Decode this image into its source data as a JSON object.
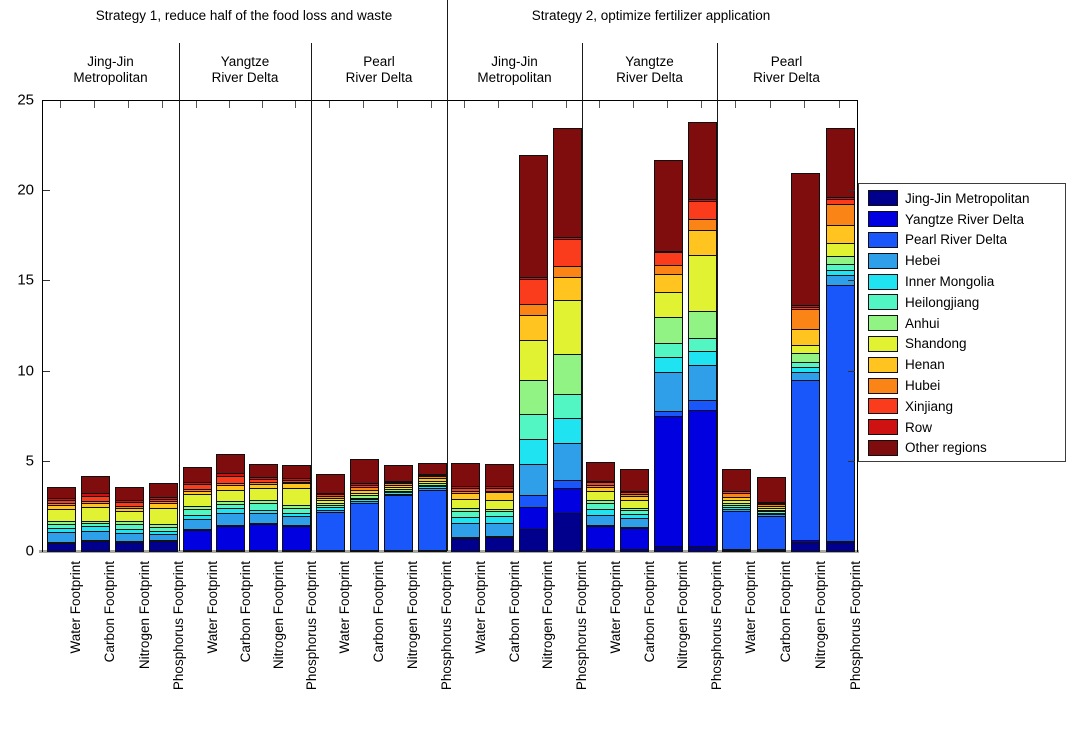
{
  "header": {
    "strategy1_title": "Strategy 1, reduce half of the food loss and waste",
    "strategy2_title": "Strategy 2, optimize fertilizer application"
  },
  "y_axis": {
    "tick_values": [
      0,
      5,
      10,
      15,
      20,
      25
    ],
    "max": 25
  },
  "x_axis": {
    "footprint_labels": [
      "Water Footprint",
      "Carbon Footprint",
      "Nitrogen Footprint",
      "Phosphorus Footprint"
    ]
  },
  "legend": {
    "note": "entries generated from chart_data.series and series_colors"
  },
  "chart_data": {
    "type": "bar",
    "stacked": true,
    "ylim": [
      0,
      25
    ],
    "grid": false,
    "legend_position": "right-outside",
    "series": [
      "Jing-Jin Metropolitan",
      "Yangtze River Delta",
      "Pearl River Delta",
      "Hebei",
      "Inner Mongolia",
      "Heilongjiang",
      "Anhui",
      "Shandong",
      "Henan",
      "Hubei",
      "Xinjiang",
      "Row",
      "Other regions"
    ],
    "series_colors": [
      "#00008C",
      "#0000E0",
      "#1A57FA",
      "#2E9FE8",
      "#1FE3F0",
      "#52F6C2",
      "#90F383",
      "#E1F232",
      "#FFC41F",
      "#FB8417",
      "#FA3C1C",
      "#CE1212",
      "#7F0D0D"
    ],
    "strategies": [
      {
        "title": "Strategy 1, reduce half of the food loss and waste",
        "regions": [
          {
            "name_lines": [
              "Jing-Jin",
              "Metropolitan"
            ],
            "bars": [
              {
                "label": "Water Footprint",
                "values": [
                  0.45,
                  0.03,
                  0.02,
                  0.55,
                  0.2,
                  0.25,
                  0.15,
                  0.7,
                  0.2,
                  0.1,
                  0.2,
                  0.1,
                  0.55
                ]
              },
              {
                "label": "Carbon Footprint",
                "values": [
                  0.55,
                  0.03,
                  0.02,
                  0.5,
                  0.3,
                  0.15,
                  0.1,
                  0.8,
                  0.2,
                  0.1,
                  0.3,
                  0.15,
                  0.9
                ]
              },
              {
                "label": "Nitrogen Footprint",
                "values": [
                  0.5,
                  0.03,
                  0.02,
                  0.45,
                  0.2,
                  0.3,
                  0.15,
                  0.55,
                  0.2,
                  0.1,
                  0.2,
                  0.15,
                  0.65
                ]
              },
              {
                "label": "Phosphorus Footprint",
                "values": [
                  0.55,
                  0.03,
                  0.02,
                  0.35,
                  0.15,
                  0.25,
                  0.15,
                  0.9,
                  0.25,
                  0.1,
                  0.15,
                  0.1,
                  0.7
                ]
              }
            ]
          },
          {
            "name_lines": [
              "Yangtze",
              "River Delta"
            ],
            "bars": [
              {
                "label": "Water Footprint",
                "values": [
                  0.05,
                  1.1,
                  0.05,
                  0.55,
                  0.25,
                  0.35,
                  0.15,
                  0.65,
                  0.2,
                  0.1,
                  0.25,
                  0.1,
                  0.8
                ]
              },
              {
                "label": "Carbon Footprint",
                "values": [
                  0.05,
                  1.35,
                  0.05,
                  0.65,
                  0.3,
                  0.2,
                  0.15,
                  0.65,
                  0.25,
                  0.1,
                  0.4,
                  0.15,
                  1.0
                ]
              },
              {
                "label": "Nitrogen Footprint",
                "values": [
                  0.05,
                  1.45,
                  0.05,
                  0.55,
                  0.2,
                  0.35,
                  0.15,
                  0.7,
                  0.2,
                  0.1,
                  0.2,
                  0.1,
                  0.65
                ]
              },
              {
                "label": "Phosphorus Footprint",
                "values": [
                  0.05,
                  1.35,
                  0.05,
                  0.5,
                  0.15,
                  0.3,
                  0.15,
                  0.95,
                  0.25,
                  0.1,
                  0.1,
                  0.1,
                  0.65
                ]
              }
            ]
          },
          {
            "name_lines": [
              "Pearl",
              "River Delta"
            ],
            "bars": [
              {
                "label": "Water Footprint",
                "values": [
                  0.03,
                  0.05,
                  2.1,
                  0.12,
                  0.15,
                  0.1,
                  0.1,
                  0.15,
                  0.15,
                  0.1,
                  0.1,
                  0.05,
                  1.0
                ]
              },
              {
                "label": "Carbon Footprint",
                "values": [
                  0.03,
                  0.05,
                  2.6,
                  0.1,
                  0.08,
                  0.1,
                  0.12,
                  0.15,
                  0.17,
                  0.15,
                  0.1,
                  0.1,
                  1.3
                ]
              },
              {
                "label": "Nitrogen Footprint",
                "values": [
                  0.03,
                  0.05,
                  3.0,
                  0.1,
                  0.08,
                  0.08,
                  0.1,
                  0.1,
                  0.12,
                  0.1,
                  0.06,
                  0.08,
                  0.8
                ]
              },
              {
                "label": "Phosphorus Footprint",
                "values": [
                  0.03,
                  0.05,
                  3.3,
                  0.12,
                  0.1,
                  0.06,
                  0.1,
                  0.12,
                  0.15,
                  0.12,
                  0.05,
                  0.05,
                  0.55
                ]
              }
            ]
          }
        ]
      },
      {
        "title": "Strategy 2, optimize fertilizer application",
        "regions": [
          {
            "name_lines": [
              "Jing-Jin",
              "Metropolitan"
            ],
            "bars": [
              {
                "label": "Water Footprint",
                "values": [
                  0.7,
                  0.05,
                  0.05,
                  0.75,
                  0.35,
                  0.3,
                  0.2,
                  0.5,
                  0.3,
                  0.12,
                  0.18,
                  0.1,
                  1.25
                ]
              },
              {
                "label": "Carbon Footprint",
                "values": [
                  0.75,
                  0.05,
                  0.05,
                  0.7,
                  0.4,
                  0.25,
                  0.15,
                  0.5,
                  0.4,
                  0.1,
                  0.15,
                  0.1,
                  1.15
                ]
              },
              {
                "label": "Nitrogen Footprint",
                "values": [
                  1.2,
                  1.25,
                  0.65,
                  1.7,
                  1.4,
                  1.4,
                  1.9,
                  2.2,
                  1.4,
                  0.6,
                  1.4,
                  0.1,
                  6.7
                ]
              },
              {
                "label": "Phosphorus Footprint",
                "values": [
                  2.1,
                  1.4,
                  0.45,
                  2.05,
                  1.4,
                  1.3,
                  2.2,
                  3.0,
                  1.3,
                  0.6,
                  1.5,
                  0.1,
                  6.0
                ]
              }
            ]
          },
          {
            "name_lines": [
              "Yangtze",
              "River Delta"
            ],
            "bars": [
              {
                "label": "Water Footprint",
                "values": [
                  0.1,
                  1.3,
                  0.05,
                  0.55,
                  0.35,
                  0.3,
                  0.15,
                  0.55,
                  0.2,
                  0.1,
                  0.15,
                  0.1,
                  1.0
                ]
              },
              {
                "label": "Carbon Footprint",
                "values": [
                  0.1,
                  1.2,
                  0.05,
                  0.5,
                  0.2,
                  0.25,
                  0.1,
                  0.45,
                  0.2,
                  0.1,
                  0.1,
                  0.05,
                  1.2
                ]
              },
              {
                "label": "Nitrogen Footprint",
                "values": [
                  0.3,
                  7.2,
                  0.25,
                  2.2,
                  0.8,
                  0.8,
                  1.4,
                  1.4,
                  1.0,
                  0.5,
                  0.7,
                  0.1,
                  4.95
                ]
              },
              {
                "label": "Phosphorus Footprint",
                "values": [
                  0.3,
                  7.5,
                  0.55,
                  1.95,
                  0.8,
                  0.7,
                  1.5,
                  3.1,
                  1.4,
                  0.6,
                  1.0,
                  0.1,
                  4.2
                ]
              }
            ]
          },
          {
            "name_lines": [
              "Pearl",
              "River Delta"
            ],
            "bars": [
              {
                "label": "Water Footprint",
                "values": [
                  0.05,
                  0.05,
                  2.1,
                  0.15,
                  0.1,
                  0.1,
                  0.1,
                  0.15,
                  0.2,
                  0.2,
                  0.1,
                  0.05,
                  1.15
                ]
              },
              {
                "label": "Carbon Footprint",
                "values": [
                  0.05,
                  0.05,
                  1.85,
                  0.1,
                  0.05,
                  0.1,
                  0.1,
                  0.1,
                  0.1,
                  0.1,
                  0.05,
                  0.05,
                  1.35
                ]
              },
              {
                "label": "Nitrogen Footprint",
                "values": [
                  0.5,
                  0.1,
                  8.9,
                  0.4,
                  0.3,
                  0.3,
                  0.5,
                  0.4,
                  0.9,
                  1.1,
                  0.15,
                  0.1,
                  7.25
                ]
              },
              {
                "label": "Phosphorus Footprint",
                "values": [
                  0.5,
                  0.05,
                  14.2,
                  0.55,
                  0.3,
                  0.3,
                  0.45,
                  0.7,
                  1.0,
                  1.2,
                  0.25,
                  0.15,
                  3.75
                ]
              }
            ]
          }
        ]
      }
    ]
  }
}
